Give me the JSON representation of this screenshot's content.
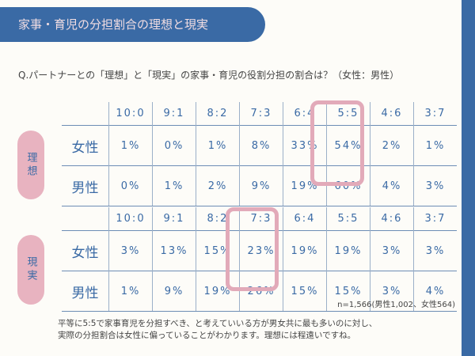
{
  "title": "家事・育児の分担割合の理想と現実",
  "question": "Q.パートナーとの「理想」と「現実」の家事・育児の役割分担の割合は？（女性：男性）",
  "columns": [
    "10:0",
    "9:1",
    "8:2",
    "7:3",
    "6:4",
    "5:5",
    "4:6",
    "3:7"
  ],
  "ideal": {
    "label": "理想",
    "rows": [
      {
        "label": "女性",
        "values": [
          "1%",
          "0%",
          "1%",
          "8%",
          "33%",
          "54%",
          "2%",
          "1%"
        ]
      },
      {
        "label": "男性",
        "values": [
          "0%",
          "1%",
          "2%",
          "9%",
          "19%",
          "60%",
          "4%",
          "3%"
        ]
      }
    ],
    "highlight": "5:5"
  },
  "reality": {
    "label": "現実",
    "rows": [
      {
        "label": "女性",
        "values": [
          "3%",
          "13%",
          "15%",
          "23%",
          "19%",
          "19%",
          "3%",
          "3%"
        ]
      },
      {
        "label": "男性",
        "values": [
          "1%",
          "9%",
          "19%",
          "26%",
          "15%",
          "15%",
          "3%",
          "4%"
        ]
      }
    ],
    "highlight": "7:3"
  },
  "sample": "n=1,566(男性1,002、女性564)",
  "note": [
    "平等に5:5で家事育児を分担すべき、と考えていいる方が男女共に最も多いのに対し、",
    "実際の分担割合は女性に偏っていることがわかります。理想には程遠いですね。"
  ],
  "colors": {
    "primary": "#3a6aa5",
    "accent": "#e8b3c0"
  }
}
